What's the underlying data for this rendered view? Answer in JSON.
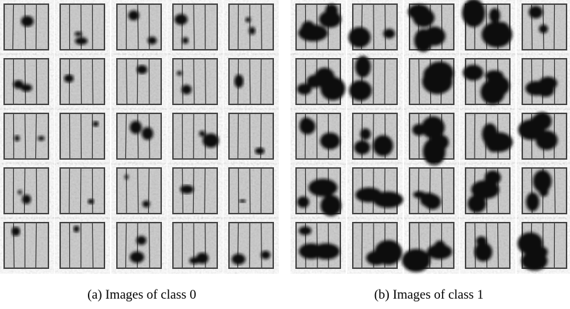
{
  "figure": {
    "panels": [
      {
        "caption": "(a) Images of class 0"
      },
      {
        "caption": "(b) Images of class 1"
      }
    ]
  }
}
